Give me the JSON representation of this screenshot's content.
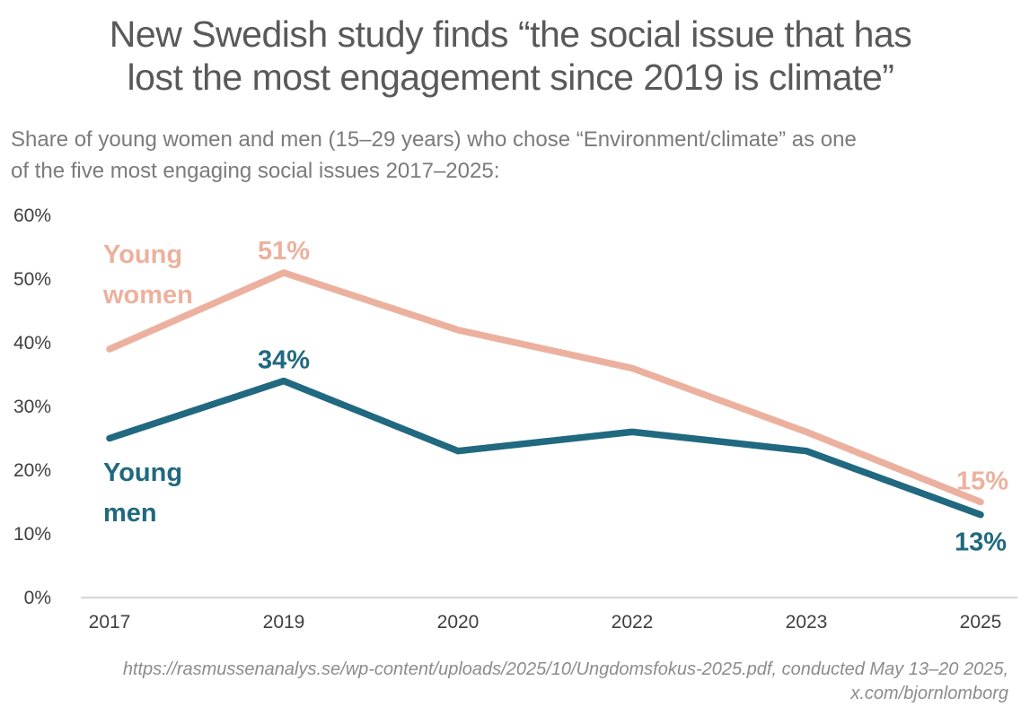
{
  "title": {
    "full": "New Swedish study finds “the social issue that has lost the most engagement since 2019 is climate”",
    "line1": "New Swedish study finds “the social issue that has",
    "line2": "lost the most engagement since 2019 is climate”"
  },
  "subtitle": {
    "full": "Share of young women and men (15–29 years) who chose “Environment/climate” as one of the five most engaging social issues 2017–2025:",
    "line1": "Share of young women and men (15–29 years) who chose “Environment/climate” as one",
    "line2": "of the five most engaging social issues 2017–2025:"
  },
  "footer": {
    "full": "https://rasmussenanalys.se/wp-content/uploads/2025/10/Ungdomsfokus-2025.pdf, conducted May 13–20 2025, x.com/bjornlomborg",
    "line1": "https://rasmussenanalys.se/wp-content/uploads/2025/10/Ungdomsfokus-2025.pdf, conducted May 13–20 2025,",
    "line2": "x.com/bjornlomborg"
  },
  "colors": {
    "women": "#ECB19E",
    "men": "#206980",
    "axis_line": "#d9d9d9",
    "tick_text": "#3f3f3f",
    "title_text": "#595959",
    "subtitle_text": "#7b7b7b",
    "footer_text": "#8c8c8c"
  },
  "chart_data": {
    "type": "line",
    "categories": [
      "2017",
      "2019",
      "2020",
      "2022",
      "2023",
      "2025"
    ],
    "series": [
      {
        "name": "Young women",
        "color": "#ECB19E",
        "values": [
          39,
          51,
          42,
          36,
          26,
          15
        ],
        "inline_label_lines": [
          "Young",
          "women"
        ]
      },
      {
        "name": "Young men",
        "color": "#206980",
        "values": [
          25,
          34,
          23,
          26,
          23,
          13
        ],
        "inline_label_lines": [
          "Young",
          "men"
        ]
      }
    ],
    "point_labels": [
      {
        "series": "Young women",
        "category": "2019",
        "text": "51%"
      },
      {
        "series": "Young men",
        "category": "2019",
        "text": "34%"
      },
      {
        "series": "Young women",
        "category": "2025",
        "text": "15%"
      },
      {
        "series": "Young men",
        "category": "2025",
        "text": "13%"
      }
    ],
    "yticks": [
      "0%",
      "10%",
      "20%",
      "30%",
      "40%",
      "50%",
      "60%"
    ],
    "ylim": [
      0,
      60
    ],
    "xlabel": "",
    "ylabel": "",
    "grid": false,
    "legend_position": "inline-annotations"
  }
}
